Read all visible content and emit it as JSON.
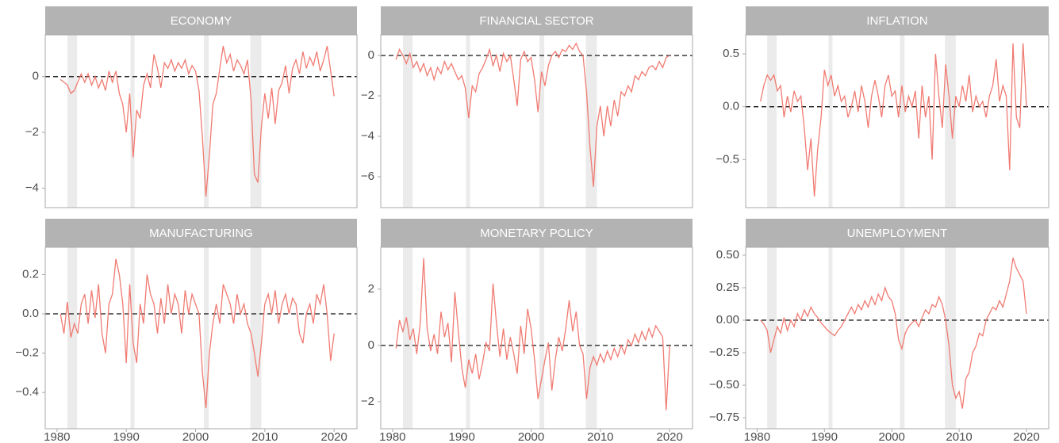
{
  "chart_data": [
    {
      "type": "line",
      "title": "ECONOMY",
      "color": "#f07b72",
      "reference_line": 0,
      "recessions": [
        [
          1981.5,
          1982.9
        ],
        [
          1990.6,
          1991.2
        ],
        [
          2001.2,
          2001.9
        ],
        [
          2007.9,
          2009.5
        ]
      ],
      "xlim": [
        1978.3,
        2023.3
      ],
      "ylim": [
        -4.7,
        1.5
      ],
      "yticks": [
        {
          "value": -4,
          "label": "−4"
        },
        {
          "value": -2,
          "label": "−2"
        },
        0
      ],
      "x": [
        1980.5,
        1981,
        1981.5,
        1982,
        1982.5,
        1983,
        1983.5,
        1984,
        1984.5,
        1985,
        1985.5,
        1986,
        1986.5,
        1987,
        1987.5,
        1988,
        1988.5,
        1989,
        1989.5,
        1990,
        1990.5,
        1991,
        1991.5,
        1992,
        1992.5,
        1993,
        1993.5,
        1994,
        1994.5,
        1995,
        1995.5,
        1996,
        1996.5,
        1997,
        1997.5,
        1998,
        1998.5,
        1999,
        1999.5,
        2000,
        2000.5,
        2001,
        2001.5,
        2002,
        2002.5,
        2003,
        2003.5,
        2004,
        2004.5,
        2005,
        2005.5,
        2006,
        2006.5,
        2007,
        2007.5,
        2008,
        2008.5,
        2009,
        2009.5,
        2010,
        2010.5,
        2011,
        2011.5,
        2012,
        2012.5,
        2013,
        2013.5,
        2014,
        2014.5,
        2015,
        2015.5,
        2016,
        2016.5,
        2017,
        2017.5,
        2018,
        2018.5,
        2019,
        2019.5,
        2020
      ],
      "values": [
        -0.1,
        -0.2,
        -0.3,
        -0.6,
        -0.5,
        -0.2,
        0.1,
        -0.2,
        0.1,
        -0.3,
        0.0,
        -0.4,
        -0.1,
        -0.5,
        0.2,
        -0.2,
        0.2,
        -0.6,
        -1.0,
        -2.0,
        -0.6,
        -2.9,
        -1.2,
        -1.5,
        -0.3,
        0.1,
        -0.4,
        0.8,
        0.3,
        -0.4,
        0.5,
        0.3,
        0.6,
        0.2,
        0.5,
        0.3,
        0.6,
        0.1,
        0.4,
        0.2,
        -0.5,
        -2.2,
        -4.3,
        -2.8,
        -1.0,
        -0.6,
        0.3,
        1.1,
        0.5,
        0.8,
        0.2,
        0.6,
        0.4,
        0.1,
        0.6,
        -0.8,
        -3.5,
        -3.8,
        -1.8,
        -0.6,
        -1.5,
        -0.4,
        -1.7,
        -0.5,
        -0.2,
        0.4,
        -0.6,
        0.3,
        0.6,
        0.1,
        0.9,
        0.3,
        0.7,
        0.4,
        0.9,
        0.2,
        0.6,
        1.1,
        0.2,
        -0.7
      ]
    },
    {
      "type": "line",
      "title": "FINANCIAL SECTOR",
      "color": "#f07b72",
      "reference_line": 0,
      "recessions": [
        [
          1981.5,
          1982.9
        ],
        [
          1990.6,
          1991.2
        ],
        [
          2001.2,
          2001.9
        ],
        [
          2007.9,
          2009.5
        ]
      ],
      "xlim": [
        1978.3,
        2023.3
      ],
      "ylim": [
        -7.53,
        1.02
      ],
      "yticks": [
        {
          "value": -6,
          "label": "−6"
        },
        {
          "value": -4,
          "label": "−4"
        },
        {
          "value": -2,
          "label": "−2"
        },
        0
      ],
      "x": [
        1980.5,
        1981,
        1981.5,
        1982,
        1982.5,
        1983,
        1983.5,
        1984,
        1984.5,
        1985,
        1985.5,
        1986,
        1986.5,
        1987,
        1987.5,
        1988,
        1988.5,
        1989,
        1989.5,
        1990,
        1990.5,
        1991,
        1991.5,
        1992,
        1992.5,
        1993,
        1993.5,
        1994,
        1994.5,
        1995,
        1995.5,
        1996,
        1996.5,
        1997,
        1997.5,
        1998,
        1998.5,
        1999,
        1999.5,
        2000,
        2000.5,
        2001,
        2001.5,
        2002,
        2002.5,
        2003,
        2003.5,
        2004,
        2004.5,
        2005,
        2005.5,
        2006,
        2006.5,
        2007,
        2007.5,
        2008,
        2008.5,
        2009,
        2009.5,
        2010,
        2010.5,
        2011,
        2011.5,
        2012,
        2012.5,
        2013,
        2013.5,
        2014,
        2014.5,
        2015,
        2015.5,
        2016,
        2016.5,
        2017,
        2017.5,
        2018,
        2018.5,
        2019,
        2019.5,
        2020
      ],
      "values": [
        -0.2,
        0.3,
        0.0,
        -0.4,
        0.1,
        -0.6,
        -0.3,
        -0.8,
        -0.4,
        -1.0,
        -0.6,
        -1.2,
        -0.6,
        -0.9,
        -0.3,
        -0.7,
        -0.4,
        -0.8,
        -1.2,
        -1.0,
        -1.6,
        -3.1,
        -1.5,
        -1.8,
        -0.9,
        -0.6,
        -0.2,
        0.3,
        -0.5,
        0.0,
        -0.8,
        0.1,
        -0.3,
        0.0,
        -1.2,
        -2.5,
        -0.2,
        0.2,
        -0.3,
        -0.1,
        -1.2,
        -2.8,
        -0.8,
        -1.5,
        -0.5,
        0.0,
        0.2,
        -0.1,
        0.3,
        0.2,
        0.5,
        0.3,
        0.6,
        0.2,
        0.0,
        -1.8,
        -4.5,
        -6.5,
        -3.5,
        -2.5,
        -4.0,
        -2.5,
        -3.5,
        -2.2,
        -3.0,
        -1.8,
        -2.0,
        -1.5,
        -1.8,
        -1.0,
        -1.2,
        -0.8,
        -1.0,
        -0.6,
        -0.5,
        -0.7,
        -0.3,
        -0.6,
        -0.1,
        0.0
      ]
    },
    {
      "type": "line",
      "title": "INFLATION",
      "color": "#f07b72",
      "reference_line": 0,
      "recessions": [
        [
          1981.5,
          1982.9
        ],
        [
          1990.6,
          1991.2
        ],
        [
          2001.2,
          2001.9
        ],
        [
          2007.9,
          2009.5
        ]
      ],
      "xlim": [
        1978.3,
        2023.3
      ],
      "ylim": [
        -0.955,
        0.68
      ],
      "yticks": [
        {
          "value": -0.5,
          "label": "−0.5"
        },
        {
          "value": 0,
          "label": "0.0"
        },
        0.5
      ],
      "x": [
        1980.5,
        1981,
        1981.5,
        1982,
        1982.5,
        1983,
        1983.5,
        1984,
        1984.5,
        1985,
        1985.5,
        1986,
        1986.5,
        1987,
        1987.5,
        1988,
        1988.5,
        1989,
        1989.5,
        1990,
        1990.5,
        1991,
        1991.5,
        1992,
        1992.5,
        1993,
        1993.5,
        1994,
        1994.5,
        1995,
        1995.5,
        1996,
        1996.5,
        1997,
        1997.5,
        1998,
        1998.5,
        1999,
        1999.5,
        2000,
        2000.5,
        2001,
        2001.5,
        2002,
        2002.5,
        2003,
        2003.5,
        2004,
        2004.5,
        2005,
        2005.5,
        2006,
        2006.5,
        2007,
        2007.5,
        2008,
        2008.5,
        2009,
        2009.5,
        2010,
        2010.5,
        2011,
        2011.5,
        2012,
        2012.5,
        2013,
        2013.5,
        2014,
        2014.5,
        2015,
        2015.5,
        2016,
        2016.5,
        2017,
        2017.5,
        2018,
        2018.5,
        2019,
        2019.5,
        2020
      ],
      "values": [
        0.05,
        0.2,
        0.3,
        0.25,
        0.3,
        0.15,
        0.2,
        -0.1,
        0.1,
        -0.05,
        0.15,
        0.05,
        0.1,
        -0.2,
        -0.6,
        -0.3,
        -0.85,
        -0.4,
        -0.1,
        0.35,
        0.2,
        0.3,
        0.1,
        0.2,
        0.05,
        0.1,
        -0.1,
        0.0,
        0.15,
        -0.05,
        0.2,
        0.05,
        -0.2,
        0.1,
        0.25,
        0.1,
        -0.1,
        0.2,
        0.3,
        0.1,
        0.15,
        -0.1,
        0.2,
        -0.05,
        0.1,
        0.0,
        0.15,
        -0.3,
        0.2,
        -0.1,
        0.1,
        -0.5,
        0.5,
        0.1,
        -0.2,
        0.4,
        0.1,
        -0.3,
        0.1,
        0.0,
        0.2,
        0.05,
        0.3,
        -0.05,
        0.1,
        0.0,
        0.05,
        -0.1,
        0.1,
        0.2,
        0.45,
        0.05,
        0.2,
        0.1,
        -0.6,
        0.6,
        -0.1,
        -0.2,
        0.6,
        0.0
      ]
    },
    {
      "type": "line",
      "title": "MANUFACTURING",
      "color": "#f07b72",
      "reference_line": 0,
      "recessions": [
        [
          1981.5,
          1982.9
        ],
        [
          1990.6,
          1991.2
        ],
        [
          2001.2,
          2001.9
        ],
        [
          2007.9,
          2009.5
        ]
      ],
      "xlim": [
        1978.3,
        2023.3
      ],
      "ylim": [
        -0.585,
        0.339
      ],
      "yticks": [
        {
          "value": -0.4,
          "label": "−0.4"
        },
        {
          "value": -0.2,
          "label": "−0.2"
        },
        {
          "value": 0,
          "label": "0.0"
        },
        0.2
      ],
      "xticks": [
        1980,
        1990,
        2000,
        2010,
        2020
      ],
      "x": [
        1980.5,
        1981,
        1981.5,
        1982,
        1982.5,
        1983,
        1983.5,
        1984,
        1984.5,
        1985,
        1985.5,
        1986,
        1986.5,
        1987,
        1987.5,
        1988,
        1988.5,
        1989,
        1989.5,
        1990,
        1990.5,
        1991,
        1991.5,
        1992,
        1992.5,
        1993,
        1993.5,
        1994,
        1994.5,
        1995,
        1995.5,
        1996,
        1996.5,
        1997,
        1997.5,
        1998,
        1998.5,
        1999,
        1999.5,
        2000,
        2000.5,
        2001,
        2001.5,
        2002,
        2002.5,
        2003,
        2003.5,
        2004,
        2004.5,
        2005,
        2005.5,
        2006,
        2006.5,
        2007,
        2007.5,
        2008,
        2008.5,
        2009,
        2009.5,
        2010,
        2010.5,
        2011,
        2011.5,
        2012,
        2012.5,
        2013,
        2013.5,
        2014,
        2014.5,
        2015,
        2015.5,
        2016,
        2016.5,
        2017,
        2017.5,
        2018,
        2018.5,
        2019,
        2019.5,
        2020
      ],
      "values": [
        0.0,
        -0.1,
        0.06,
        -0.12,
        -0.05,
        -0.1,
        0.05,
        0.1,
        -0.05,
        0.12,
        -0.02,
        0.15,
        -0.1,
        -0.2,
        0.05,
        0.1,
        0.28,
        0.2,
        0.05,
        -0.25,
        0.15,
        -0.15,
        -0.25,
        0.05,
        -0.05,
        0.2,
        0.1,
        0.05,
        -0.1,
        0.08,
        -0.05,
        0.15,
        0.0,
        0.1,
        0.05,
        -0.1,
        0.12,
        0.0,
        0.1,
        0.05,
        0.0,
        -0.3,
        -0.48,
        -0.2,
        -0.05,
        0.05,
        -0.05,
        0.15,
        0.1,
        0.05,
        -0.05,
        0.1,
        0.0,
        0.05,
        -0.05,
        -0.1,
        -0.2,
        -0.32,
        -0.15,
        0.05,
        0.1,
        0.0,
        0.12,
        -0.05,
        0.05,
        0.1,
        0.0,
        0.08,
        0.05,
        -0.1,
        -0.15,
        0.0,
        0.05,
        -0.05,
        0.1,
        0.05,
        0.15,
        0.0,
        -0.24,
        -0.1
      ]
    },
    {
      "type": "line",
      "title": "MONETARY POLICY",
      "color": "#f07b72",
      "reference_line": 0,
      "recessions": [
        [
          1981.5,
          1982.9
        ],
        [
          1990.6,
          1991.2
        ],
        [
          2001.2,
          2001.9
        ],
        [
          2007.9,
          2009.5
        ]
      ],
      "xlim": [
        1978.3,
        2023.3
      ],
      "ylim": [
        -2.96,
        3.49
      ],
      "yticks": [
        {
          "value": -2,
          "label": "−2"
        },
        0,
        2
      ],
      "xticks": [
        1980,
        1990,
        2000,
        2010,
        2020
      ],
      "x": [
        1980.5,
        1981,
        1981.5,
        1982,
        1982.5,
        1983,
        1983.5,
        1984,
        1984.5,
        1985,
        1985.5,
        1986,
        1986.5,
        1987,
        1987.5,
        1988,
        1988.5,
        1989,
        1989.5,
        1990,
        1990.5,
        1991,
        1991.5,
        1992,
        1992.5,
        1993,
        1993.5,
        1994,
        1994.5,
        1995,
        1995.5,
        1996,
        1996.5,
        1997,
        1997.5,
        1998,
        1998.5,
        1999,
        1999.5,
        2000,
        2000.5,
        2001,
        2001.5,
        2002,
        2002.5,
        2003,
        2003.5,
        2004,
        2004.5,
        2005,
        2005.5,
        2006,
        2006.5,
        2007,
        2007.5,
        2008,
        2008.5,
        2009,
        2009.5,
        2010,
        2010.5,
        2011,
        2011.5,
        2012,
        2012.5,
        2013,
        2013.5,
        2014,
        2014.5,
        2015,
        2015.5,
        2016,
        2016.5,
        2017,
        2017.5,
        2018,
        2018.5,
        2019,
        2019.5,
        2020
      ],
      "values": [
        -0.1,
        0.9,
        0.5,
        1.0,
        0.2,
        0.6,
        -0.3,
        0.8,
        3.1,
        0.6,
        -0.2,
        0.4,
        -0.3,
        1.2,
        0.3,
        0.8,
        -0.6,
        1.9,
        0.5,
        -0.8,
        -1.5,
        -0.5,
        -1.0,
        -0.3,
        -1.2,
        -0.6,
        0.1,
        -0.2,
        2.2,
        0.8,
        -0.4,
        0.6,
        -0.5,
        0.3,
        -0.3,
        -1.0,
        0.7,
        -0.3,
        1.3,
        0.6,
        -0.5,
        -1.9,
        -1.2,
        -0.5,
        0.1,
        -1.6,
        -0.5,
        0.3,
        -0.2,
        0.6,
        1.6,
        0.5,
        1.2,
        0.0,
        -0.3,
        -1.9,
        -0.8,
        -0.4,
        -0.7,
        -0.3,
        -0.6,
        -0.2,
        -0.5,
        -0.1,
        -0.4,
        0.0,
        -0.3,
        0.2,
        0.0,
        0.4,
        0.1,
        0.5,
        0.2,
        0.6,
        0.3,
        0.7,
        0.5,
        0.3,
        -2.3,
        0.0
      ]
    },
    {
      "type": "line",
      "title": "UNEMPLOYMENT",
      "color": "#f07b72",
      "reference_line": 0,
      "recessions": [
        [
          1981.5,
          1982.9
        ],
        [
          1990.6,
          1991.2
        ],
        [
          2001.2,
          2001.9
        ],
        [
          2007.9,
          2009.5
        ]
      ],
      "xlim": [
        1978.3,
        2023.3
      ],
      "ylim": [
        -0.835,
        0.561
      ],
      "yticks": [
        {
          "value": -0.75,
          "label": "−0.75"
        },
        {
          "value": -0.5,
          "label": "−0.50"
        },
        {
          "value": -0.25,
          "label": "−0.25"
        },
        {
          "value": 0,
          "label": "0.00"
        },
        0.25,
        {
          "value": 0.5,
          "label": "0.50"
        }
      ],
      "xticks": [
        1980,
        1990,
        2000,
        2010,
        2020
      ],
      "x": [
        1980.5,
        1981,
        1981.5,
        1982,
        1982.5,
        1983,
        1983.5,
        1984,
        1984.5,
        1985,
        1985.5,
        1986,
        1986.5,
        1987,
        1987.5,
        1988,
        1988.5,
        1989,
        1989.5,
        1990,
        1990.5,
        1991,
        1991.5,
        1992,
        1992.5,
        1993,
        1993.5,
        1994,
        1994.5,
        1995,
        1995.5,
        1996,
        1996.5,
        1997,
        1997.5,
        1998,
        1998.5,
        1999,
        1999.5,
        2000,
        2000.5,
        2001,
        2001.5,
        2002,
        2002.5,
        2003,
        2003.5,
        2004,
        2004.5,
        2005,
        2005.5,
        2006,
        2006.5,
        2007,
        2007.5,
        2008,
        2008.5,
        2009,
        2009.5,
        2010,
        2010.5,
        2011,
        2011.5,
        2012,
        2012.5,
        2013,
        2013.5,
        2014,
        2014.5,
        2015,
        2015.5,
        2016,
        2016.5,
        2017,
        2017.5,
        2018,
        2018.5,
        2019,
        2019.5,
        2020
      ],
      "values": [
        0.0,
        -0.03,
        -0.08,
        -0.25,
        -0.15,
        -0.05,
        -0.1,
        0.02,
        -0.08,
        0.0,
        -0.05,
        0.05,
        0.0,
        0.08,
        0.03,
        0.1,
        0.05,
        0.02,
        -0.02,
        -0.05,
        -0.08,
        -0.1,
        -0.12,
        -0.08,
        -0.05,
        0.0,
        0.05,
        0.1,
        0.05,
        0.12,
        0.08,
        0.15,
        0.1,
        0.18,
        0.12,
        0.2,
        0.15,
        0.25,
        0.18,
        0.15,
        0.05,
        -0.15,
        -0.22,
        -0.1,
        -0.05,
        -0.02,
        0.0,
        -0.05,
        0.02,
        0.08,
        0.05,
        0.12,
        0.1,
        0.18,
        0.12,
        0.0,
        -0.2,
        -0.5,
        -0.6,
        -0.55,
        -0.68,
        -0.45,
        -0.4,
        -0.25,
        -0.2,
        -0.1,
        -0.12,
        0.0,
        0.05,
        0.1,
        0.08,
        0.15,
        0.1,
        0.2,
        0.3,
        0.48,
        0.4,
        0.35,
        0.3,
        0.05
      ]
    }
  ]
}
